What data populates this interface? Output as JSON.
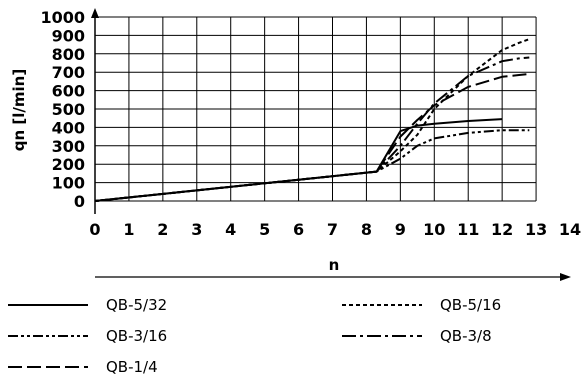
{
  "chart_data": {
    "type": "line",
    "xlabel": "n",
    "ylabel": "qn [l/min]",
    "xlim": [
      0,
      14
    ],
    "ylim": [
      0,
      1000
    ],
    "x_ticks": [
      0,
      1,
      2,
      3,
      4,
      5,
      6,
      7,
      8,
      9,
      10,
      11,
      12,
      13,
      14
    ],
    "y_ticks": [
      0,
      100,
      200,
      300,
      400,
      500,
      600,
      700,
      800,
      900,
      1000
    ],
    "grid": true,
    "legend_position": "bottom",
    "series": [
      {
        "name": "QB-5/32",
        "dash": "solid",
        "x": [
          0,
          8.3,
          9,
          9.5,
          10,
          11,
          12
        ],
        "y": [
          0,
          160,
          380,
          410,
          420,
          435,
          445
        ]
      },
      {
        "name": "QB-5/16",
        "dash": "dotted",
        "x": [
          0,
          8.3,
          9,
          9.5,
          10,
          11,
          12,
          12.5,
          12.8
        ],
        "y": [
          0,
          160,
          270,
          360,
          500,
          680,
          820,
          860,
          880
        ]
      },
      {
        "name": "QB-3/16",
        "dash": "dash-dot-dot",
        "x": [
          0,
          8.3,
          9,
          9.5,
          10,
          11,
          12,
          12.5,
          12.8
        ],
        "y": [
          0,
          160,
          230,
          300,
          340,
          370,
          385,
          385,
          385
        ]
      },
      {
        "name": "QB-3/8",
        "dash": "dash-dot",
        "x": [
          0,
          8.3,
          9,
          9.5,
          10,
          11,
          12,
          12.5,
          12.8
        ],
        "y": [
          0,
          160,
          300,
          420,
          530,
          680,
          760,
          775,
          780
        ]
      },
      {
        "name": "QB-1/4",
        "dash": "dashed",
        "x": [
          0,
          8.3,
          9,
          9.5,
          10,
          11,
          12,
          12.5,
          12.8
        ],
        "y": [
          0,
          160,
          350,
          440,
          520,
          620,
          675,
          685,
          690
        ]
      }
    ]
  }
}
